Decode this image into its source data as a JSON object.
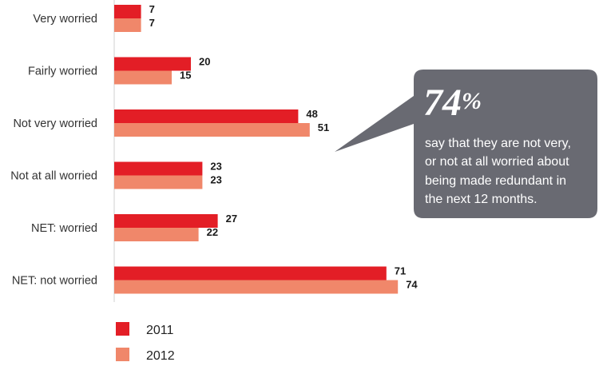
{
  "chart_data": {
    "type": "bar",
    "orientation": "horizontal",
    "categories": [
      "Very worried",
      "Fairly worried",
      "Not very worried",
      "Not at all worried",
      "NET: worried",
      "NET: not worried"
    ],
    "series": [
      {
        "name": "2011",
        "values": [
          7,
          20,
          48,
          23,
          27,
          71
        ],
        "color": "#e31e26"
      },
      {
        "name": "2012",
        "values": [
          7,
          15,
          51,
          23,
          22,
          74
        ],
        "color": "#f0876a"
      }
    ],
    "xlim": [
      0,
      100
    ],
    "grid": false,
    "legend_position": "bottom-left"
  },
  "callout": {
    "percent": "74",
    "percent_sign": "%",
    "lines": [
      "say that they are not very,",
      "or not at all worried about",
      "being made redundant in",
      "the next 12 months."
    ],
    "background": "#696a72"
  }
}
